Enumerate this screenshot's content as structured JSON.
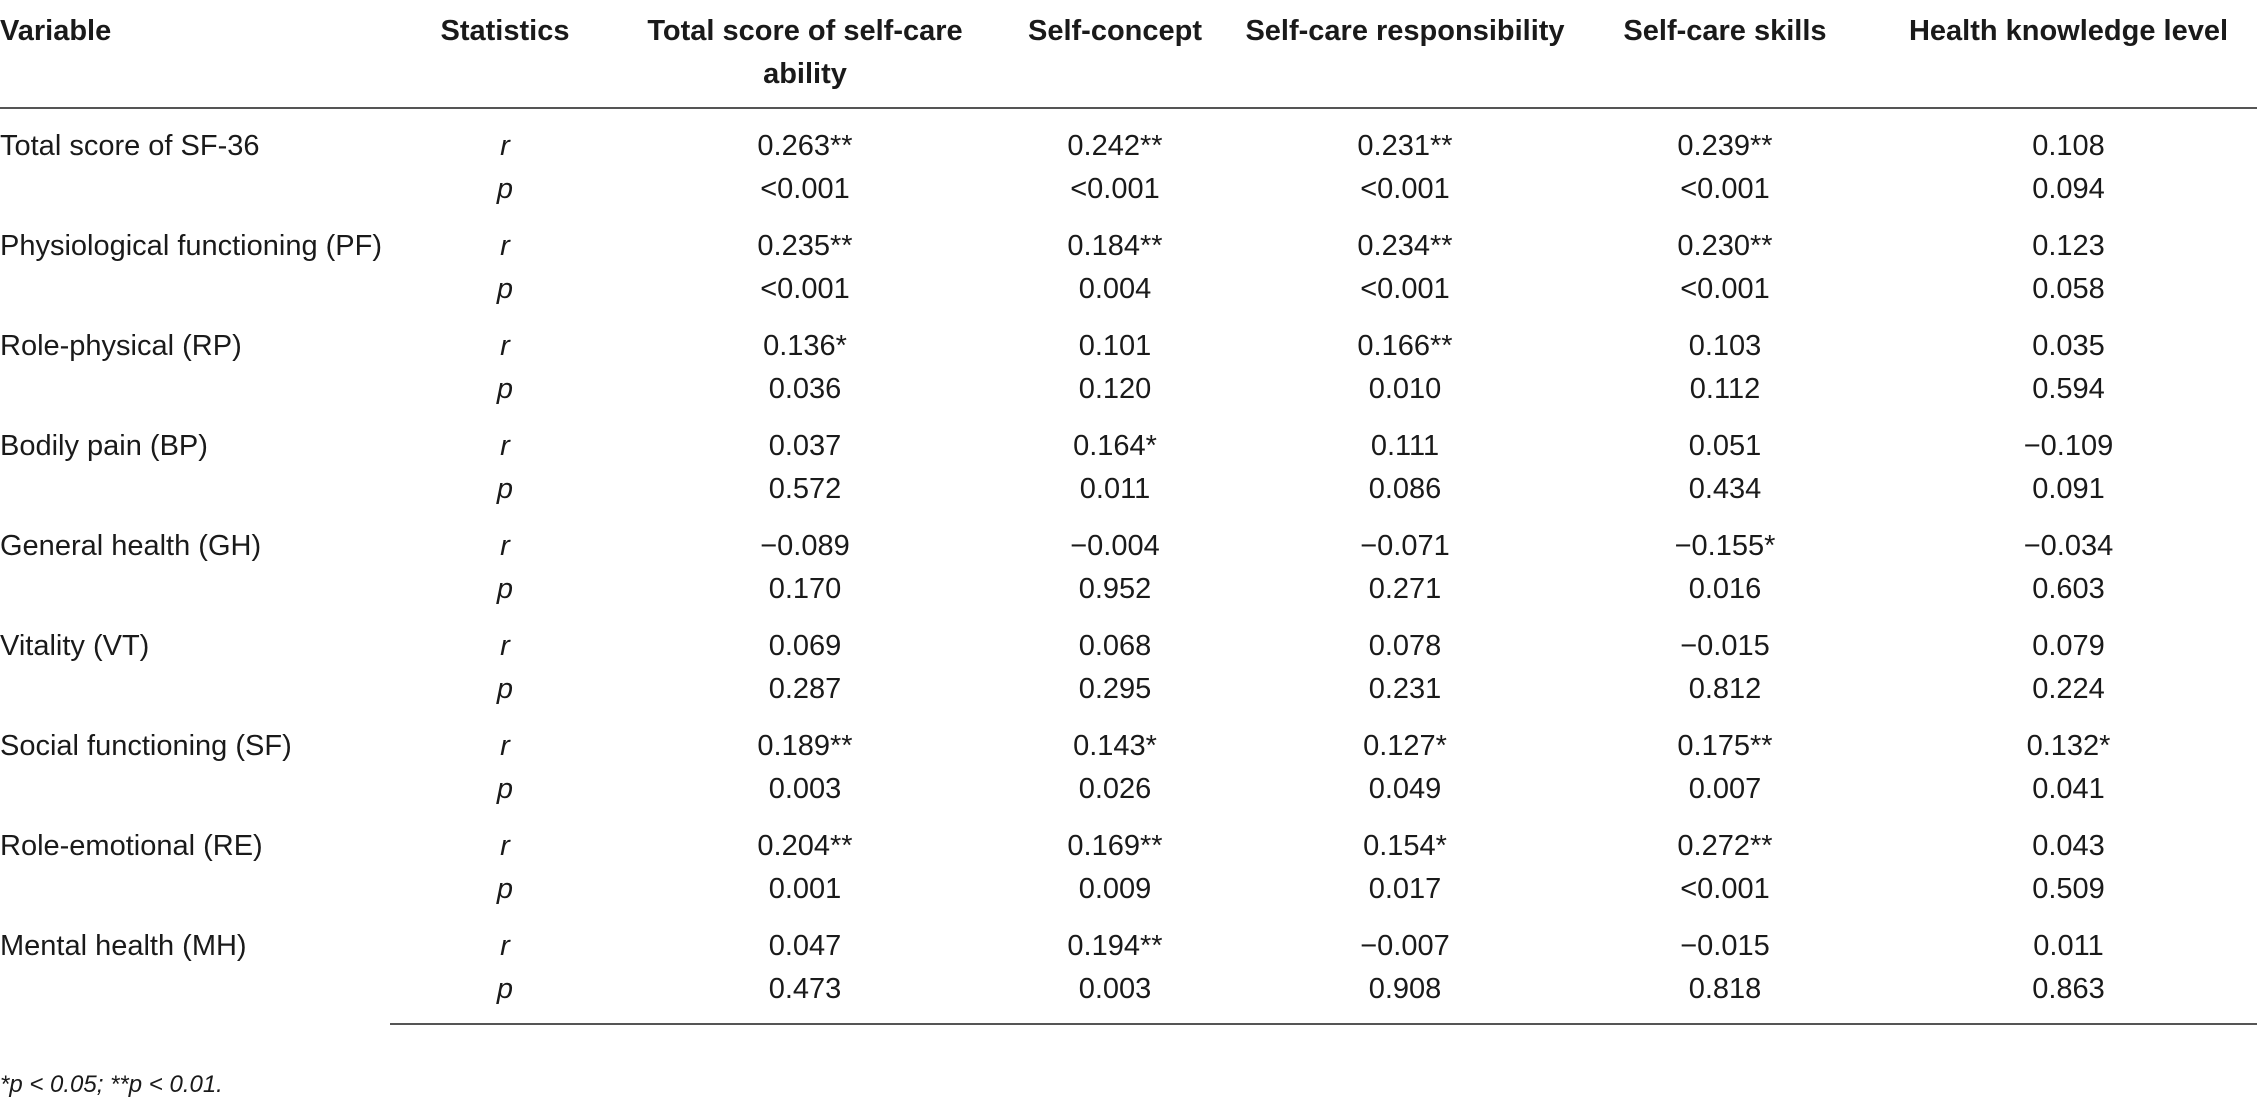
{
  "table": {
    "headers": [
      "Variable",
      "Statistics",
      "Total score of self-care ability",
      "Self-concept",
      "Self-care responsibility",
      "Self-care skills",
      "Health knowledge level"
    ],
    "rows": [
      {
        "variable": "Total score of SF-36",
        "r": [
          "0.263**",
          "0.242**",
          "0.231**",
          "0.239**",
          "0.108"
        ],
        "p": [
          "<0.001",
          "<0.001",
          "<0.001",
          "<0.001",
          "0.094"
        ]
      },
      {
        "variable": "Physiological functioning (PF)",
        "r": [
          "0.235**",
          "0.184**",
          "0.234**",
          "0.230**",
          "0.123"
        ],
        "p": [
          "<0.001",
          "0.004",
          "<0.001",
          "<0.001",
          "0.058"
        ]
      },
      {
        "variable": "Role-physical (RP)",
        "r": [
          "0.136*",
          "0.101",
          "0.166**",
          "0.103",
          "0.035"
        ],
        "p": [
          "0.036",
          "0.120",
          "0.010",
          "0.112",
          "0.594"
        ]
      },
      {
        "variable": "Bodily pain (BP)",
        "r": [
          "0.037",
          "0.164*",
          "0.111",
          "0.051",
          "−0.109"
        ],
        "p": [
          "0.572",
          "0.011",
          "0.086",
          "0.434",
          "0.091"
        ]
      },
      {
        "variable": "General health (GH)",
        "r": [
          "−0.089",
          "−0.004",
          "−0.071",
          "−0.155*",
          "−0.034"
        ],
        "p": [
          "0.170",
          "0.952",
          "0.271",
          "0.016",
          "0.603"
        ]
      },
      {
        "variable": "Vitality (VT)",
        "r": [
          "0.069",
          "0.068",
          "0.078",
          "−0.015",
          "0.079"
        ],
        "p": [
          "0.287",
          "0.295",
          "0.231",
          "0.812",
          "0.224"
        ]
      },
      {
        "variable": "Social functioning (SF)",
        "r": [
          "0.189**",
          "0.143*",
          "0.127*",
          "0.175**",
          "0.132*"
        ],
        "p": [
          "0.003",
          "0.026",
          "0.049",
          "0.007",
          "0.041"
        ]
      },
      {
        "variable": "Role-emotional (RE)",
        "r": [
          "0.204**",
          "0.169**",
          "0.154*",
          "0.272**",
          "0.043"
        ],
        "p": [
          "0.001",
          "0.009",
          "0.017",
          "<0.001",
          "0.509"
        ]
      },
      {
        "variable": "Mental health (MH)",
        "r": [
          "0.047",
          "0.194**",
          "−0.007",
          "−0.015",
          "0.011"
        ],
        "p": [
          "0.473",
          "0.003",
          "0.908",
          "0.818",
          "0.863"
        ]
      }
    ],
    "stat_labels": {
      "r": "r",
      "p": "p"
    }
  },
  "footnote": "*p < 0.05; **p < 0.01."
}
